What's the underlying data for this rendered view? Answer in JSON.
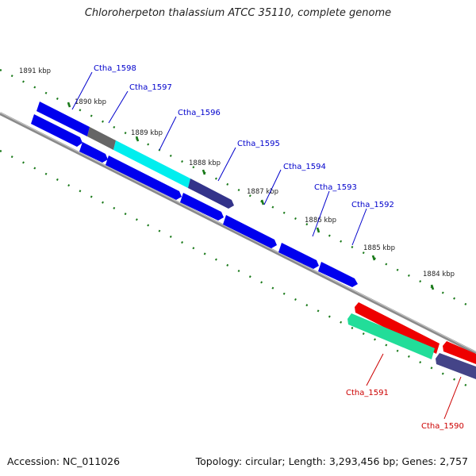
{
  "title": "Chloroherpeton thalassium ATCC 35110, complete genome",
  "accession_text": "Accession: NC_011026",
  "summary_text": "Topology: circular; Length: 3,293,456 bp; Genes: 2,757",
  "colors": {
    "backbone": "#8a8a8a",
    "tick": "#1a7a1a",
    "forward_gene_label": "#0000cc",
    "reverse_gene_label": "#cc0000",
    "gene_blue": "#0000ee",
    "gene_cyan": "#00eeee",
    "gene_gray": "#666666",
    "gene_navy": "#33338a",
    "gene_red": "#ee0000",
    "gene_teal": "#22dd99",
    "gene_slate": "#444488"
  },
  "kbp_ticks": [
    "1891 kbp",
    "1890 kbp",
    "1889 kbp",
    "1888 kbp",
    "1887 kbp",
    "1886 kbp",
    "1885 kbp",
    "1884 kbp"
  ],
  "gene_labels": {
    "forward": [
      "Ctha_1598",
      "Ctha_1597",
      "Ctha_1596",
      "Ctha_1595",
      "Ctha_1594",
      "Ctha_1593",
      "Ctha_1592"
    ],
    "reverse": [
      "Ctha_1591",
      "Ctha_1590"
    ]
  }
}
